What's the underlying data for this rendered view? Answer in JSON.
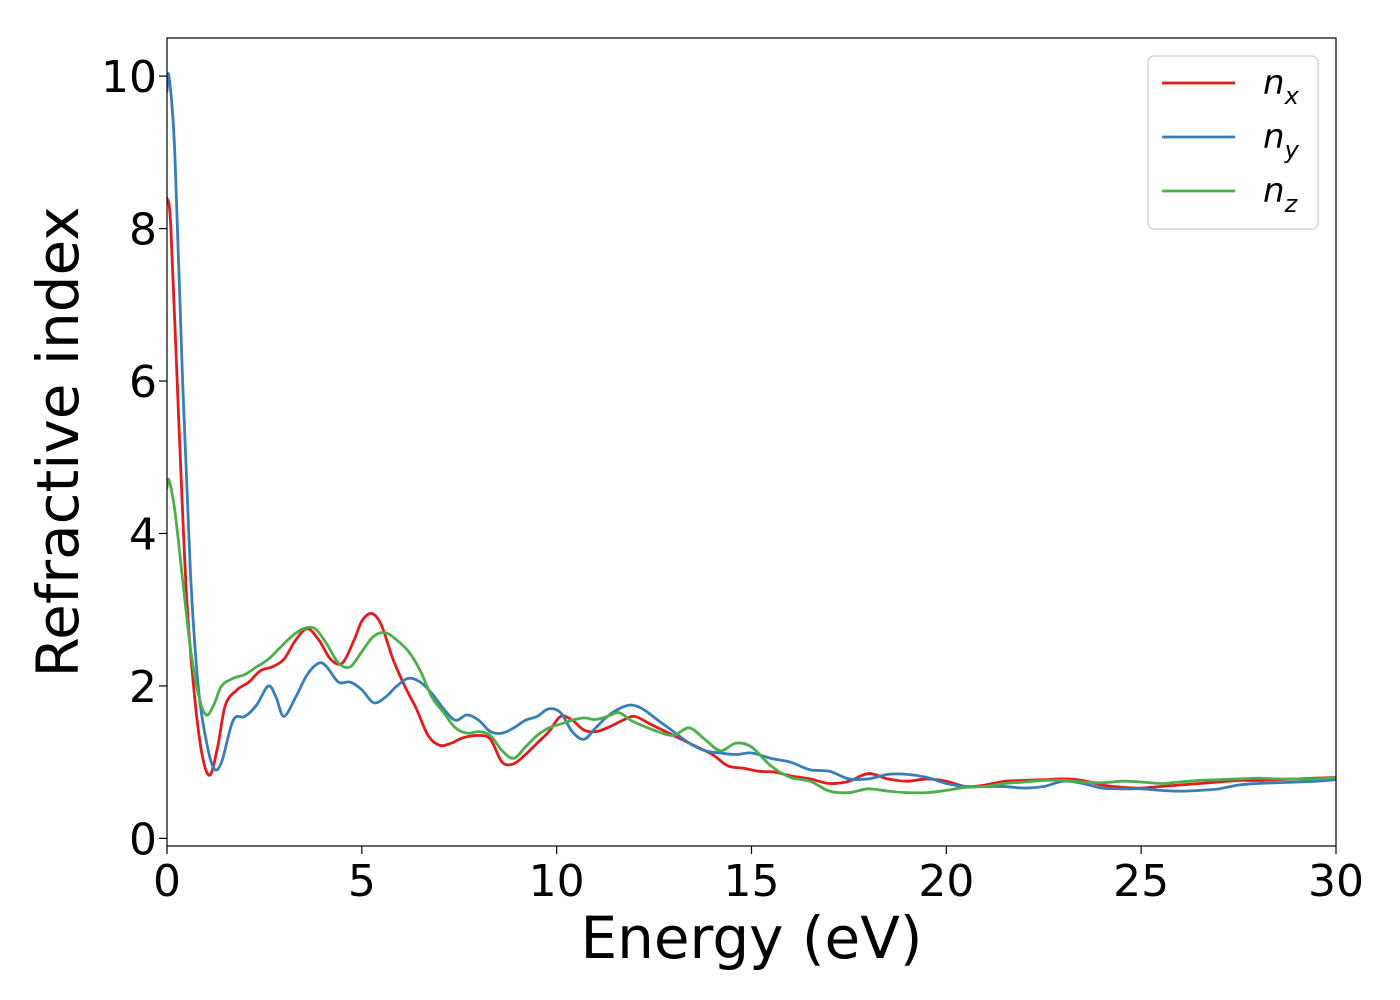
{
  "chart_data": {
    "type": "line",
    "title": "",
    "xlabel": "Energy (eV)",
    "ylabel": "Refractive index",
    "xlim": [
      0,
      30
    ],
    "ylim": [
      -0.1,
      10.5
    ],
    "xticks": [
      0,
      5,
      10,
      15,
      20,
      25,
      30
    ],
    "yticks": [
      0,
      2,
      4,
      6,
      8,
      10
    ],
    "grid": false,
    "legend_position": "top-right",
    "series": [
      {
        "name": "n",
        "subscript": "x",
        "color": "#e41a1c",
        "x": [
          0,
          0.1,
          0.3,
          0.5,
          0.7,
          0.9,
          1.1,
          1.3,
          1.5,
          1.8,
          2.1,
          2.4,
          2.7,
          3.0,
          3.3,
          3.6,
          3.9,
          4.2,
          4.5,
          4.8,
          5.0,
          5.25,
          5.5,
          5.8,
          6.1,
          6.4,
          6.7,
          7.0,
          7.3,
          7.6,
          8.0,
          8.3,
          8.6,
          8.9,
          9.2,
          9.5,
          9.8,
          10.1,
          10.4,
          10.7,
          11.0,
          11.3,
          11.7,
          12.0,
          12.4,
          12.8,
          13.2,
          13.6,
          14.0,
          14.4,
          14.8,
          15.2,
          15.6,
          16.0,
          16.5,
          17.0,
          17.5,
          18.0,
          18.5,
          19.0,
          19.5,
          20.0,
          20.5,
          21.0,
          21.5,
          22.0,
          22.5,
          23.0,
          23.5,
          24.0,
          24.5,
          25.0,
          25.5,
          26.0,
          26.5,
          27.0,
          27.5,
          28.0,
          28.5,
          29.0,
          29.5,
          30.0
        ],
        "values": [
          8.4,
          8.0,
          5.5,
          3.2,
          1.9,
          1.1,
          0.83,
          1.2,
          1.75,
          1.95,
          2.05,
          2.2,
          2.25,
          2.35,
          2.6,
          2.75,
          2.6,
          2.35,
          2.3,
          2.6,
          2.85,
          2.95,
          2.8,
          2.35,
          2.0,
          1.7,
          1.35,
          1.22,
          1.25,
          1.32,
          1.35,
          1.3,
          1.0,
          0.98,
          1.1,
          1.25,
          1.4,
          1.6,
          1.55,
          1.42,
          1.4,
          1.45,
          1.55,
          1.6,
          1.5,
          1.4,
          1.3,
          1.2,
          1.1,
          0.95,
          0.92,
          0.88,
          0.87,
          0.82,
          0.78,
          0.72,
          0.75,
          0.85,
          0.78,
          0.75,
          0.78,
          0.75,
          0.68,
          0.7,
          0.75,
          0.76,
          0.77,
          0.78,
          0.76,
          0.7,
          0.67,
          0.66,
          0.68,
          0.7,
          0.72,
          0.74,
          0.76,
          0.76,
          0.77,
          0.78,
          0.79,
          0.8
        ]
      },
      {
        "name": "n",
        "subscript": "y",
        "color": "#377eb8",
        "x": [
          0,
          0.05,
          0.2,
          0.4,
          0.6,
          0.8,
          1.0,
          1.2,
          1.4,
          1.7,
          2.0,
          2.3,
          2.6,
          2.8,
          3.0,
          3.3,
          3.6,
          3.9,
          4.1,
          4.4,
          4.7,
          5.0,
          5.3,
          5.6,
          5.9,
          6.2,
          6.5,
          6.8,
          7.1,
          7.4,
          7.7,
          8.0,
          8.3,
          8.6,
          8.9,
          9.2,
          9.5,
          9.8,
          10.1,
          10.4,
          10.7,
          11.0,
          11.3,
          11.6,
          11.9,
          12.2,
          12.6,
          13.0,
          13.4,
          13.8,
          14.2,
          14.6,
          15.0,
          15.5,
          16.0,
          16.5,
          17.0,
          17.5,
          18.0,
          18.5,
          19.0,
          19.5,
          20.0,
          20.5,
          21.0,
          21.5,
          22.0,
          22.5,
          23.0,
          23.5,
          24.0,
          24.5,
          25.0,
          25.5,
          26.0,
          26.5,
          27.0,
          27.5,
          28.0,
          28.5,
          29.0,
          29.5,
          30.0
        ],
        "values": [
          9.8,
          10.0,
          9.0,
          6.0,
          3.5,
          2.0,
          1.3,
          0.92,
          1.0,
          1.55,
          1.6,
          1.75,
          2.0,
          1.85,
          1.6,
          1.85,
          2.15,
          2.3,
          2.25,
          2.05,
          2.05,
          1.95,
          1.78,
          1.85,
          2.0,
          2.1,
          2.05,
          1.9,
          1.7,
          1.55,
          1.62,
          1.55,
          1.4,
          1.38,
          1.45,
          1.55,
          1.6,
          1.7,
          1.65,
          1.4,
          1.3,
          1.45,
          1.6,
          1.7,
          1.75,
          1.7,
          1.55,
          1.4,
          1.25,
          1.15,
          1.12,
          1.1,
          1.12,
          1.05,
          1.0,
          0.9,
          0.88,
          0.78,
          0.78,
          0.84,
          0.84,
          0.8,
          0.72,
          0.68,
          0.68,
          0.68,
          0.66,
          0.68,
          0.75,
          0.72,
          0.66,
          0.65,
          0.65,
          0.63,
          0.62,
          0.63,
          0.65,
          0.7,
          0.72,
          0.73,
          0.74,
          0.75,
          0.77
        ]
      },
      {
        "name": "n",
        "subscript": "z",
        "color": "#4daf4a",
        "x": [
          0,
          0.05,
          0.2,
          0.4,
          0.6,
          0.8,
          1.0,
          1.2,
          1.4,
          1.7,
          2.0,
          2.3,
          2.6,
          2.9,
          3.2,
          3.5,
          3.8,
          4.1,
          4.4,
          4.7,
          5.0,
          5.3,
          5.6,
          5.9,
          6.2,
          6.5,
          6.8,
          7.1,
          7.4,
          7.7,
          8.0,
          8.3,
          8.6,
          8.9,
          9.2,
          9.5,
          9.8,
          10.1,
          10.4,
          10.7,
          11.0,
          11.3,
          11.6,
          11.9,
          12.2,
          12.6,
          13.0,
          13.4,
          13.8,
          14.2,
          14.6,
          15.0,
          15.5,
          16.0,
          16.5,
          17.0,
          17.5,
          18.0,
          18.5,
          19.0,
          19.5,
          20.0,
          20.5,
          21.0,
          21.5,
          22.0,
          22.5,
          23.0,
          23.5,
          24.0,
          24.5,
          25.0,
          25.5,
          26.0,
          26.5,
          27.0,
          27.5,
          28.0,
          28.5,
          29.0,
          29.5,
          30.0
        ],
        "values": [
          4.6,
          4.7,
          4.3,
          3.4,
          2.5,
          1.9,
          1.62,
          1.75,
          2.0,
          2.1,
          2.15,
          2.25,
          2.35,
          2.5,
          2.65,
          2.75,
          2.75,
          2.55,
          2.3,
          2.25,
          2.45,
          2.65,
          2.7,
          2.6,
          2.45,
          2.2,
          1.85,
          1.65,
          1.45,
          1.38,
          1.4,
          1.35,
          1.15,
          1.05,
          1.2,
          1.35,
          1.45,
          1.5,
          1.55,
          1.58,
          1.56,
          1.6,
          1.65,
          1.55,
          1.48,
          1.4,
          1.35,
          1.45,
          1.3,
          1.15,
          1.25,
          1.2,
          0.95,
          0.8,
          0.75,
          0.62,
          0.6,
          0.65,
          0.62,
          0.6,
          0.6,
          0.63,
          0.67,
          0.68,
          0.72,
          0.74,
          0.76,
          0.76,
          0.74,
          0.73,
          0.75,
          0.74,
          0.72,
          0.74,
          0.76,
          0.77,
          0.78,
          0.79,
          0.78,
          0.78,
          0.78,
          0.8
        ]
      }
    ]
  }
}
